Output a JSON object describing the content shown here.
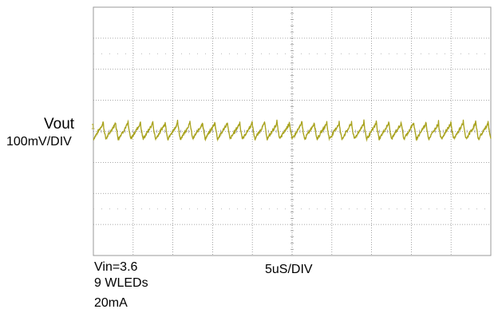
{
  "chart_data": {
    "type": "line",
    "title": "",
    "channel": {
      "name": "Vout",
      "scale": "100mV/DIV"
    },
    "timebase": "5uS/DIV",
    "conditions": [
      "Vin=3.6",
      "9 WLEDs",
      "20mA"
    ],
    "grid": {
      "x_divisions": 10,
      "y_divisions": 8,
      "visible": true
    },
    "trace_color": "#a8a21c",
    "ripple": {
      "cycles_on_screen": 32,
      "peak_to_peak_divisions": 0.5,
      "shape": "sawtooth",
      "vertical_position_divisions_above_bottom": 4.0
    }
  }
}
